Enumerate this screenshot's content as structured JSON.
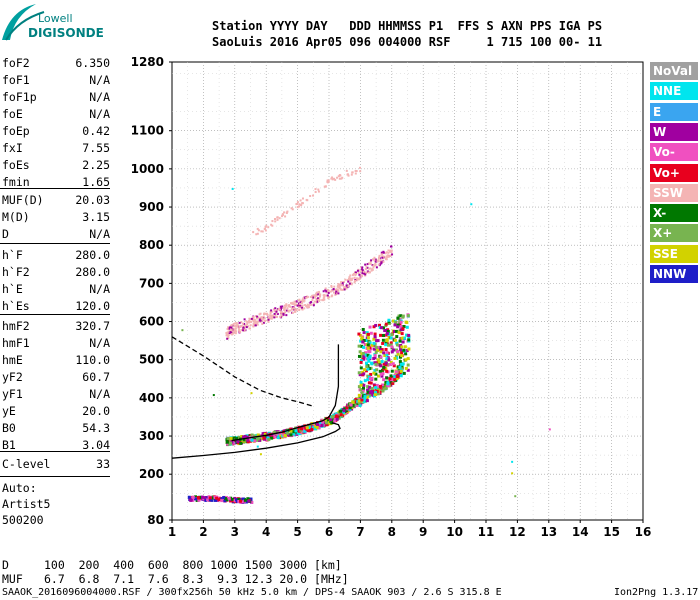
{
  "logo": {
    "line1": "Lowell",
    "line2": "DIGISONDE"
  },
  "header": {
    "line1": "Station YYYY DAY   DDD HHMMSS P1  FFS S AXN PPS IGA PS",
    "line2": "SaoLuis 2016 Apr05 096 004000 RSF     1 715 100 00- 11"
  },
  "params": {
    "group1": [
      {
        "name": "foF2",
        "value": "6.350"
      },
      {
        "name": "foF1",
        "value": "N/A"
      },
      {
        "name": "foF1p",
        "value": "N/A"
      },
      {
        "name": "foE",
        "value": "N/A"
      },
      {
        "name": "foEp",
        "value": "0.42"
      },
      {
        "name": "fxI",
        "value": "7.55"
      },
      {
        "name": "foEs",
        "value": "2.25"
      },
      {
        "name": "fmin",
        "value": "1.65"
      }
    ],
    "group2": [
      {
        "name": "MUF(D)",
        "value": "20.03"
      },
      {
        "name": "M(D)",
        "value": "3.15"
      },
      {
        "name": "D",
        "value": "N/A"
      }
    ],
    "group3": [
      {
        "name": "h`F",
        "value": "280.0"
      },
      {
        "name": "h`F2",
        "value": "280.0"
      },
      {
        "name": "h`E",
        "value": "N/A"
      },
      {
        "name": "h`Es",
        "value": "120.0"
      }
    ],
    "group4": [
      {
        "name": "hmF2",
        "value": "320.7"
      },
      {
        "name": "hmF1",
        "value": "N/A"
      },
      {
        "name": "hmE",
        "value": "110.0"
      },
      {
        "name": "yF2",
        "value": "60.7"
      },
      {
        "name": "yF1",
        "value": "N/A"
      },
      {
        "name": "yE",
        "value": "20.0"
      },
      {
        "name": "B0",
        "value": "54.3"
      },
      {
        "name": "B1",
        "value": "3.04"
      }
    ],
    "clevel": {
      "name": "C-level",
      "value": "33"
    },
    "auto": [
      "Auto:",
      "Artist5",
      "500200"
    ]
  },
  "legend": [
    {
      "label": "NoVal",
      "color": "#a0a0a0"
    },
    {
      "label": "NNE",
      "color": "#00e5ee"
    },
    {
      "label": "E",
      "color": "#3aa5f0"
    },
    {
      "label": "W",
      "color": "#a000a0"
    },
    {
      "label": "Vo-",
      "color": "#f050c0"
    },
    {
      "label": "Vo+",
      "color": "#e8001e"
    },
    {
      "label": "SSW",
      "color": "#f4b4b4"
    },
    {
      "label": "X-",
      "color": "#007800"
    },
    {
      "label": "X+",
      "color": "#78b450"
    },
    {
      "label": "SSE",
      "color": "#d2d200"
    },
    {
      "label": "NNW",
      "color": "#1e1ec8"
    }
  ],
  "footer": {
    "dist_label": "D",
    "dist_values": "100  200  400  600  800 1000 1500 3000 [km]",
    "muf_label": "MUF",
    "muf_values": "6.7  6.8  7.1  7.6  8.3  9.3 12.3 20.0 [MHz]",
    "file_info": "SAAOK_2016096004000.RSF / 300fx256h 50 kHz 5.0 km / DPS-4 SAAOK 903 / 2.6 S 315.8 E",
    "version": "Ion2Png 1.3.17"
  },
  "chart_data": {
    "type": "scatter",
    "title": "",
    "xlabel": "",
    "ylabel": "",
    "xlim": [
      1,
      16
    ],
    "ylim": [
      80,
      1280
    ],
    "xticks": [
      1,
      2,
      3,
      4,
      5,
      6,
      7,
      8,
      9,
      10,
      11,
      12,
      13,
      14,
      15,
      16
    ],
    "yticks": [
      80,
      200,
      300,
      400,
      500,
      600,
      700,
      800,
      900,
      1000,
      1100,
      1280
    ],
    "grid": true,
    "grid_style": "dotted",
    "trace_clusters": [
      {
        "name": "F-trace",
        "points": [
          [
            2.7,
            290
          ],
          [
            3.0,
            292
          ],
          [
            3.5,
            298
          ],
          [
            4.0,
            303
          ],
          [
            4.5,
            310
          ],
          [
            5.0,
            318
          ],
          [
            5.5,
            330
          ],
          [
            6.0,
            345
          ],
          [
            6.3,
            360
          ],
          [
            6.6,
            380
          ],
          [
            7.0,
            400
          ],
          [
            7.5,
            420
          ],
          [
            8.0,
            450
          ],
          [
            8.3,
            480
          ]
        ]
      },
      {
        "name": "2nd-hop-F",
        "points": [
          [
            2.7,
            570
          ],
          [
            3.0,
            585
          ],
          [
            3.5,
            600
          ],
          [
            4.0,
            615
          ],
          [
            4.5,
            630
          ],
          [
            5.0,
            645
          ],
          [
            5.5,
            660
          ],
          [
            6.0,
            680
          ],
          [
            6.5,
            700
          ],
          [
            7.0,
            730
          ],
          [
            7.5,
            760
          ],
          [
            8.0,
            790
          ]
        ]
      },
      {
        "name": "3rd-hop-F",
        "points": [
          [
            3.5,
            830
          ],
          [
            4.0,
            850
          ],
          [
            4.5,
            880
          ],
          [
            5.0,
            910
          ],
          [
            5.5,
            940
          ],
          [
            6.0,
            970
          ],
          [
            6.5,
            990
          ],
          [
            7.0,
            1000
          ]
        ]
      },
      {
        "name": "Es",
        "points": [
          [
            1.5,
            140
          ],
          [
            2.0,
            140
          ],
          [
            2.5,
            140
          ],
          [
            3.0,
            135
          ],
          [
            3.5,
            135
          ]
        ]
      }
    ],
    "isolated_points": [
      [
        1.3,
        580
      ],
      [
        2.3,
        410
      ],
      [
        3.5,
        415
      ],
      [
        10.5,
        910
      ],
      [
        11.8,
        235
      ],
      [
        11.8,
        205
      ],
      [
        11.9,
        145
      ],
      [
        13.0,
        320
      ],
      [
        2.9,
        950
      ],
      [
        3.7,
        275
      ],
      [
        3.8,
        255
      ]
    ],
    "profile_curves": [
      {
        "name": "profile-solid",
        "style": "solid",
        "points": [
          [
            1,
            242
          ],
          [
            2,
            249
          ],
          [
            3,
            257
          ],
          [
            4,
            268
          ],
          [
            5,
            282
          ],
          [
            5.8,
            298
          ],
          [
            6.2,
            312
          ],
          [
            6.35,
            320
          ],
          [
            6.3,
            330
          ],
          [
            6.1,
            335
          ]
        ]
      },
      {
        "name": "model-dashed",
        "style": "dashed",
        "points": [
          [
            1,
            560
          ],
          [
            2,
            510
          ],
          [
            3,
            455
          ],
          [
            3.8,
            420
          ],
          [
            4.5,
            400
          ],
          [
            5.0,
            390
          ],
          [
            5.5,
            378
          ]
        ]
      },
      {
        "name": "trace-solid",
        "style": "solid",
        "points": [
          [
            2.9,
            288
          ],
          [
            3.5,
            296
          ],
          [
            4.0,
            302
          ],
          [
            4.5,
            310
          ],
          [
            5.0,
            322
          ],
          [
            5.5,
            333
          ],
          [
            5.8,
            340
          ],
          [
            6.0,
            350
          ],
          [
            6.2,
            380
          ],
          [
            6.3,
            430
          ],
          [
            6.3,
            540
          ]
        ]
      }
    ]
  }
}
